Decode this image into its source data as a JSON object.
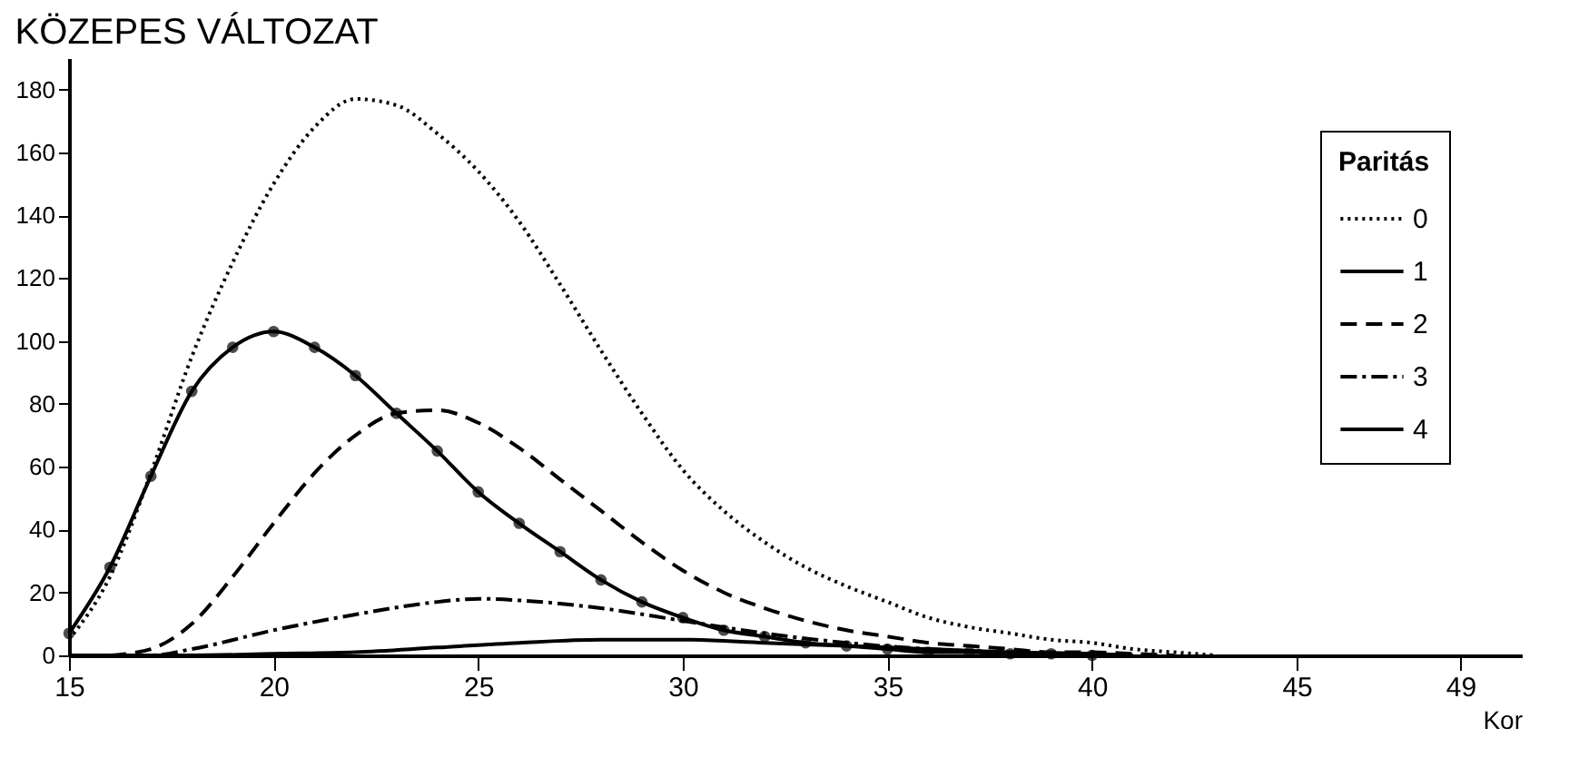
{
  "chart_data": {
    "type": "line",
    "title": "KÖZEPES VÁLTOZAT",
    "xlabel": "Kor",
    "legend_title": "Paritás",
    "legend": "top right",
    "grid": false,
    "xlim": [
      15,
      50.5
    ],
    "xticks": [
      15,
      20,
      25,
      30,
      35,
      40,
      45,
      49
    ],
    "ylim": [
      0,
      190
    ],
    "yticks": [
      0,
      20,
      40,
      60,
      80,
      100,
      120,
      140,
      160,
      180
    ],
    "series": [
      {
        "name": "0",
        "color": "#000000",
        "line_style": "dotted",
        "marker": "none",
        "x": [
          15,
          16,
          17,
          18,
          19,
          20,
          21,
          22,
          23,
          24,
          25,
          26,
          27,
          28,
          29,
          30,
          31,
          32,
          33,
          34,
          35,
          36,
          37,
          38,
          39,
          40,
          41,
          42,
          43
        ],
        "values": [
          5,
          25,
          58,
          95,
          125,
          150,
          168,
          177,
          175,
          166,
          154,
          138,
          118,
          97,
          77,
          59,
          46,
          36,
          28,
          22,
          17,
          12,
          9,
          7,
          5,
          4,
          2,
          1,
          0
        ]
      },
      {
        "name": "1",
        "color": "#000000",
        "line_style": "solid",
        "marker": "circle",
        "x": [
          15,
          16,
          17,
          18,
          19,
          20,
          21,
          22,
          23,
          24,
          25,
          26,
          27,
          28,
          29,
          30,
          31,
          32,
          33,
          34,
          35,
          36,
          37,
          38,
          39,
          40
        ],
        "values": [
          7,
          28,
          57,
          84,
          98,
          103,
          98,
          89,
          77,
          65,
          52,
          42,
          33,
          24,
          17,
          12,
          8,
          6,
          4,
          3,
          2,
          1,
          1,
          0.5,
          0.5,
          0
        ]
      },
      {
        "name": "2",
        "color": "#000000",
        "line_style": "dashed",
        "marker": "none",
        "x": [
          16,
          17,
          18,
          19,
          20,
          21,
          22,
          23,
          24,
          25,
          26,
          27,
          28,
          29,
          30,
          31,
          32,
          33,
          34,
          35,
          36,
          37,
          38,
          39,
          40,
          41,
          42
        ],
        "values": [
          0,
          2,
          10,
          25,
          42,
          58,
          70,
          77,
          78,
          74,
          66,
          56,
          46,
          36,
          27,
          20,
          15,
          11,
          8,
          6,
          4,
          3,
          2,
          1,
          1,
          0.5,
          0
        ]
      },
      {
        "name": "3",
        "color": "#000000",
        "line_style": "dashdot",
        "marker": "none",
        "x": [
          15,
          16,
          17,
          18,
          20,
          22,
          24,
          25,
          26,
          28,
          30,
          32,
          34,
          36,
          38,
          40
        ],
        "values": [
          0,
          0,
          0,
          2,
          8,
          13,
          17,
          18,
          17.5,
          15,
          11,
          7,
          4,
          2,
          1,
          0
        ]
      },
      {
        "name": "4",
        "color": "#000000",
        "line_style": "solid",
        "marker": "none",
        "x": [
          15,
          18,
          20,
          22,
          24,
          26,
          28,
          30,
          32,
          34,
          36,
          38,
          40,
          41
        ],
        "values": [
          0,
          0,
          0.5,
          1,
          2.5,
          4,
          5,
          5,
          4,
          3,
          2,
          1,
          0.5,
          0
        ]
      }
    ]
  }
}
